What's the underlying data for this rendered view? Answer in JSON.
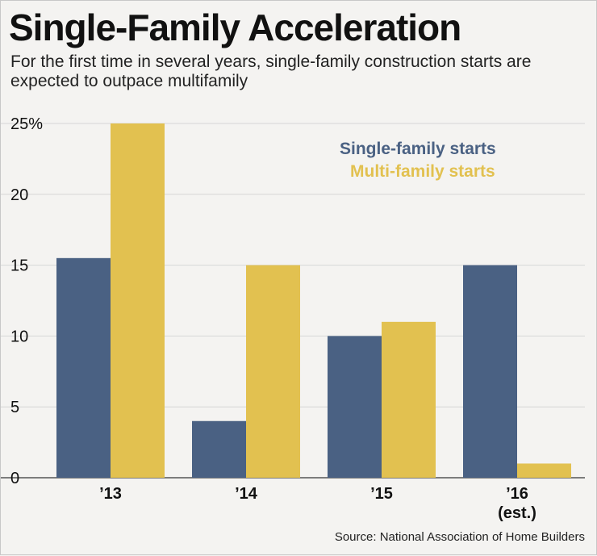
{
  "chart_data": {
    "type": "bar",
    "title": "Single-Family Acceleration",
    "subtitle": "For the first time in several years, single-family construction starts are expected to outpace multifamily",
    "categories": [
      "’13",
      "’14",
      "’15",
      "’16"
    ],
    "category_notes": [
      "",
      "",
      "",
      "(est.)"
    ],
    "series": [
      {
        "name": "Single-family starts",
        "color": "#4a6183",
        "values": [
          15.5,
          4,
          10,
          15
        ]
      },
      {
        "name": "Multi-family starts",
        "color": "#e2c150",
        "values": [
          25,
          15,
          11,
          1
        ]
      }
    ],
    "yticks": [
      "0",
      "5",
      "10",
      "15",
      "20",
      "25%"
    ],
    "ylim": [
      0,
      25
    ],
    "grid": true,
    "legend_position": "top-right",
    "source": "Source: National Association of Home Builders"
  }
}
